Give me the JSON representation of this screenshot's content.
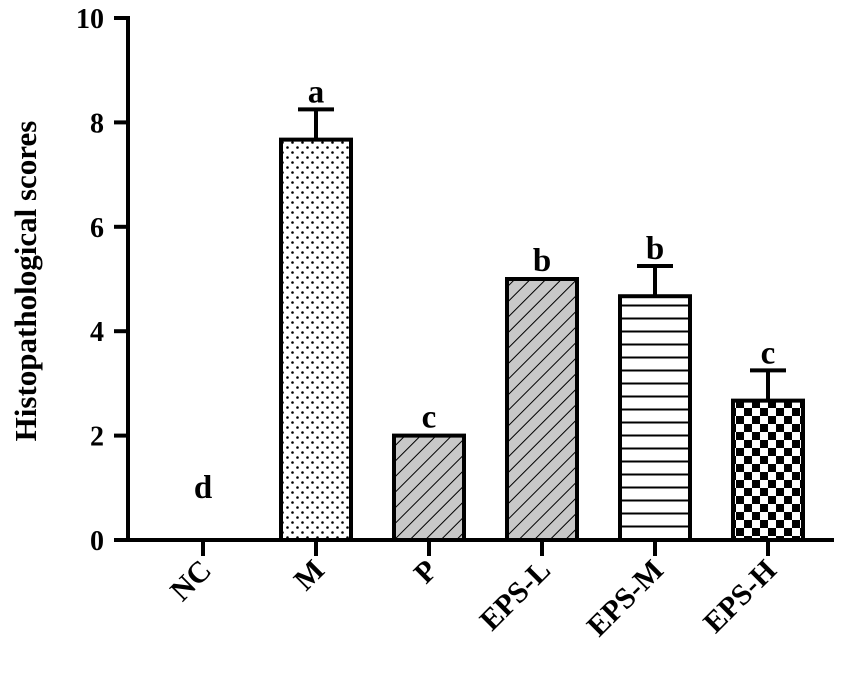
{
  "chart_data": {
    "type": "bar",
    "ylabel": "Histopathological scores",
    "xlabel": "",
    "ylim": [
      0,
      10
    ],
    "yticks": [
      0,
      2,
      4,
      6,
      8,
      10
    ],
    "categories": [
      "NC",
      "M",
      "P",
      "EPS-L",
      "EPS-M",
      "EPS-H"
    ],
    "values": [
      0,
      7.67,
      2.0,
      5.0,
      4.67,
      2.67
    ],
    "errors": [
      0,
      0.58,
      0,
      0,
      0.58,
      0.58
    ],
    "significance_letters": [
      "d",
      "a",
      "c",
      "b",
      "b",
      "c"
    ],
    "patterns": [
      "none",
      "dots",
      "diagonal-gray",
      "diagonal-gray",
      "horizontal-lines",
      "checkerboard"
    ],
    "grid": false,
    "legend": "none"
  }
}
